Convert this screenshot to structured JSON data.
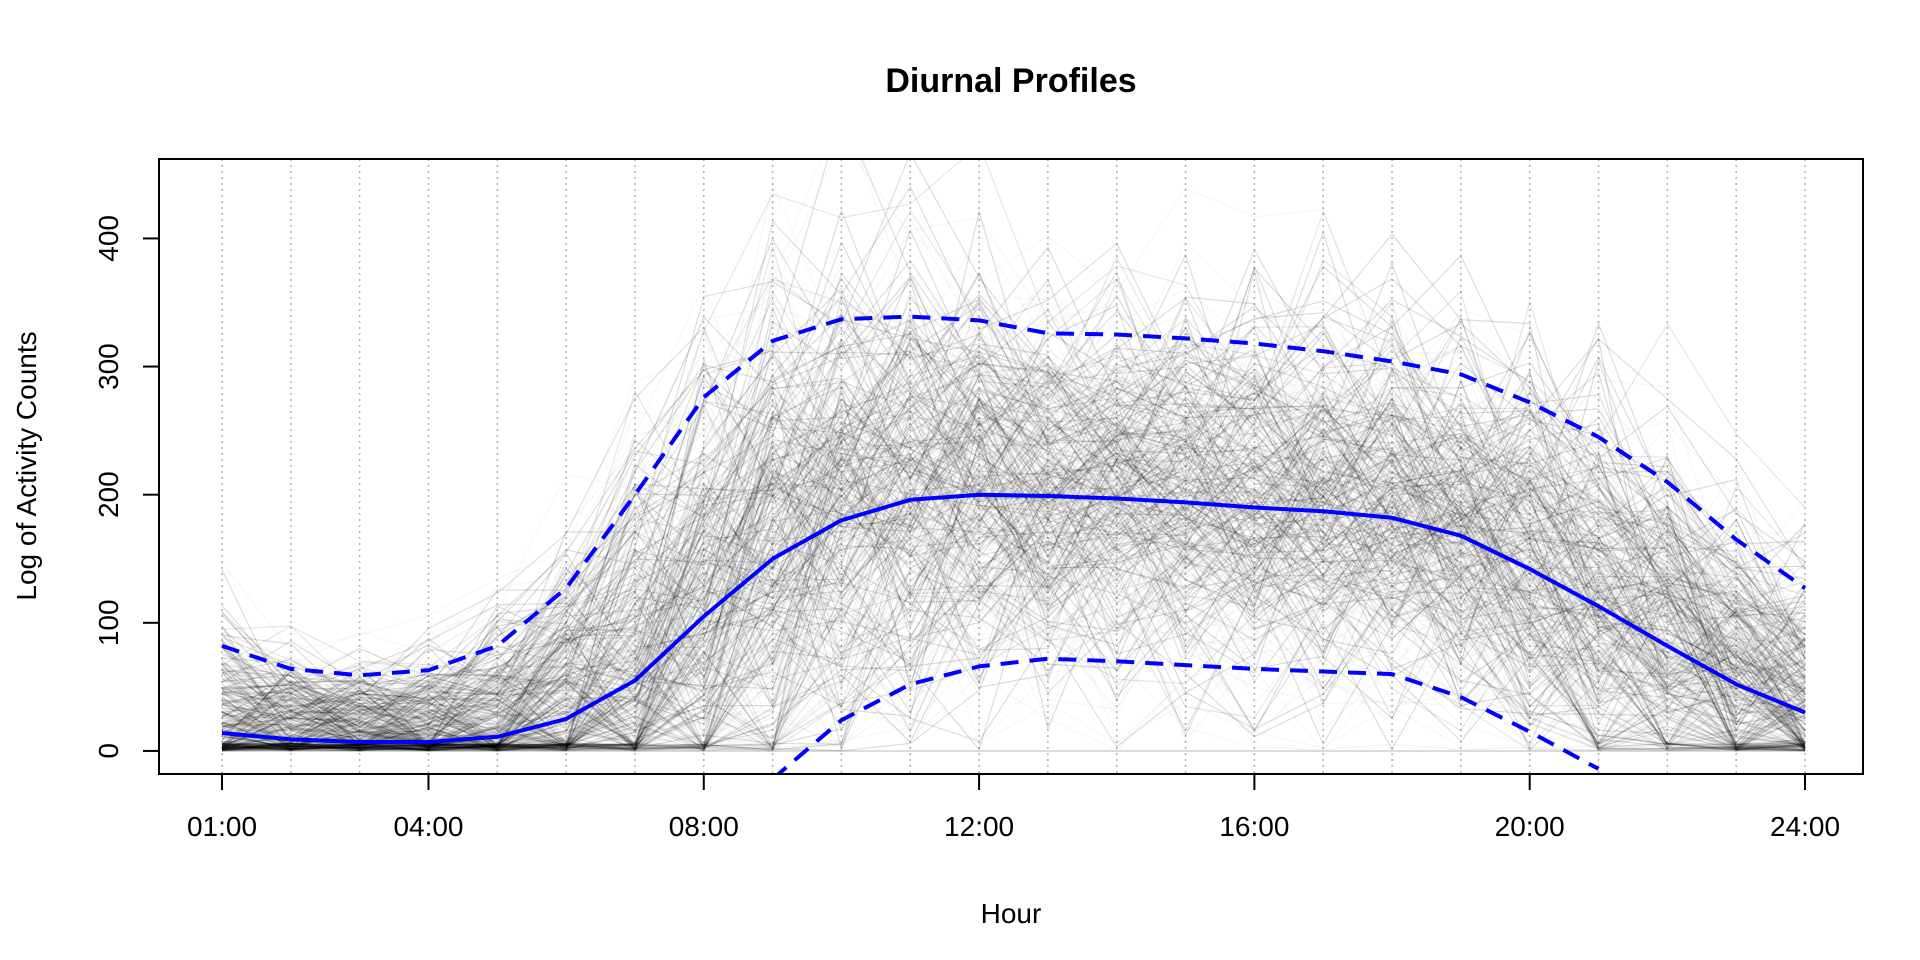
{
  "chart_data": {
    "type": "line",
    "title": "Diurnal Profiles",
    "xlabel": "Hour",
    "ylabel": "Log of Activity Counts",
    "x": [
      1,
      2,
      3,
      4,
      5,
      6,
      7,
      8,
      9,
      10,
      11,
      12,
      13,
      14,
      15,
      16,
      17,
      18,
      19,
      20,
      21,
      22,
      23,
      24
    ],
    "xlim": [
      1,
      24
    ],
    "ylim": [
      -18,
      462
    ],
    "x_ticks": [
      1,
      4,
      8,
      12,
      16,
      20,
      24
    ],
    "x_tick_labels": [
      "01:00",
      "04:00",
      "08:00",
      "12:00",
      "16:00",
      "20:00",
      "24:00"
    ],
    "y_ticks": [
      0,
      100,
      200,
      300,
      400
    ],
    "y_tick_labels": [
      "0",
      "100",
      "200",
      "300",
      "400"
    ],
    "grid": "vertical dotted at every hour",
    "legend": "none",
    "series": [
      {
        "role": "mean",
        "style": "solid",
        "color": "#0000ff",
        "values": [
          14,
          9,
          7,
          7,
          11,
          25,
          55,
          105,
          150,
          180,
          196,
          200,
          199,
          197,
          194,
          190,
          187,
          182,
          168,
          142,
          113,
          82,
          52,
          30
        ]
      },
      {
        "role": "upper-band",
        "style": "dashed",
        "color": "#0000ff",
        "values": [
          82,
          64,
          59,
          63,
          82,
          127,
          200,
          276,
          320,
          337,
          339,
          336,
          326,
          325,
          322,
          318,
          312,
          304,
          294,
          272,
          245,
          210,
          165,
          127
        ]
      },
      {
        "role": "lower-band",
        "style": "dashed",
        "color": "#0000ff",
        "values": [
          null,
          null,
          null,
          null,
          null,
          null,
          null,
          null,
          -22,
          24,
          52,
          66,
          72,
          70,
          67,
          64,
          62,
          60,
          42,
          15,
          -14,
          null,
          null,
          null
        ]
      }
    ],
    "background_profiles": {
      "color": "#000000",
      "description_visible": "many faint overlapping individual profiles"
    }
  }
}
